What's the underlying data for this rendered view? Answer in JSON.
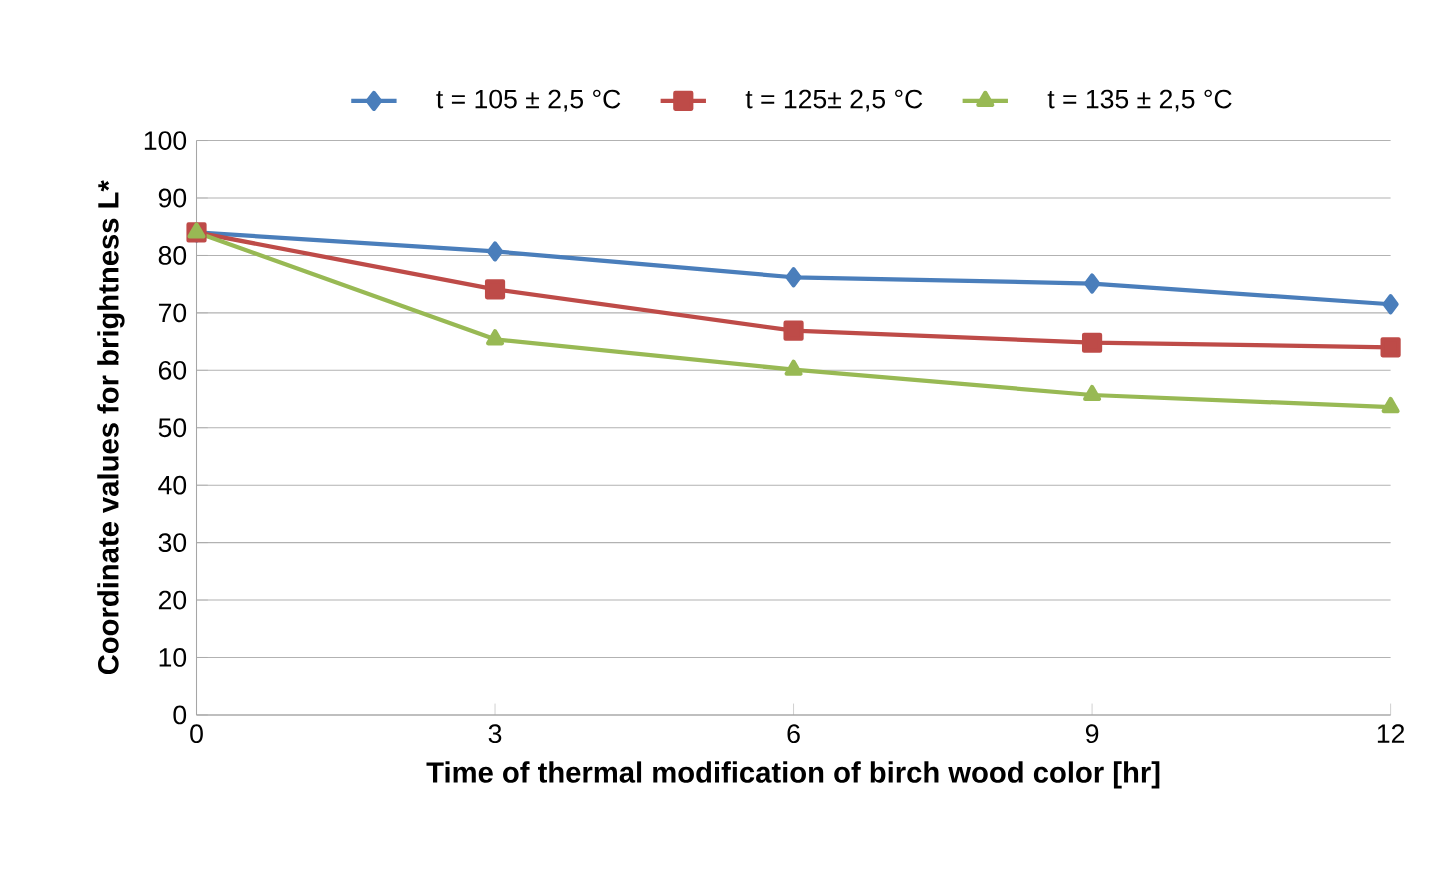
{
  "chart_data": {
    "type": "line",
    "xlabel": "Time of thermal modification of birch wood color [hr]",
    "ylabel": "Coordinate values for brightness  L*",
    "x": [
      0,
      3,
      6,
      9,
      12
    ],
    "xlim": [
      0,
      12
    ],
    "xticks": [
      0,
      3,
      6,
      9,
      12
    ],
    "ylim": [
      0,
      100
    ],
    "yticks": [
      0,
      10,
      20,
      30,
      40,
      50,
      60,
      70,
      80,
      90,
      100
    ],
    "grid": "y",
    "legend": "top",
    "series": [
      {
        "name": "t = 105 ± 2,5 °C",
        "color": "#4a7ebb",
        "marker": "diamond",
        "values": [
          84,
          80.7,
          76.2,
          75.1,
          71.5
        ]
      },
      {
        "name": "t = 125± 2,5 °C",
        "color": "#be4b48",
        "marker": "square",
        "values": [
          84,
          74.1,
          66.9,
          64.8,
          64.0
        ]
      },
      {
        "name": "t = 135 ± 2,5 °C",
        "color": "#98b954",
        "marker": "triangle",
        "values": [
          84,
          65.4,
          60.1,
          55.7,
          53.6
        ]
      }
    ]
  }
}
